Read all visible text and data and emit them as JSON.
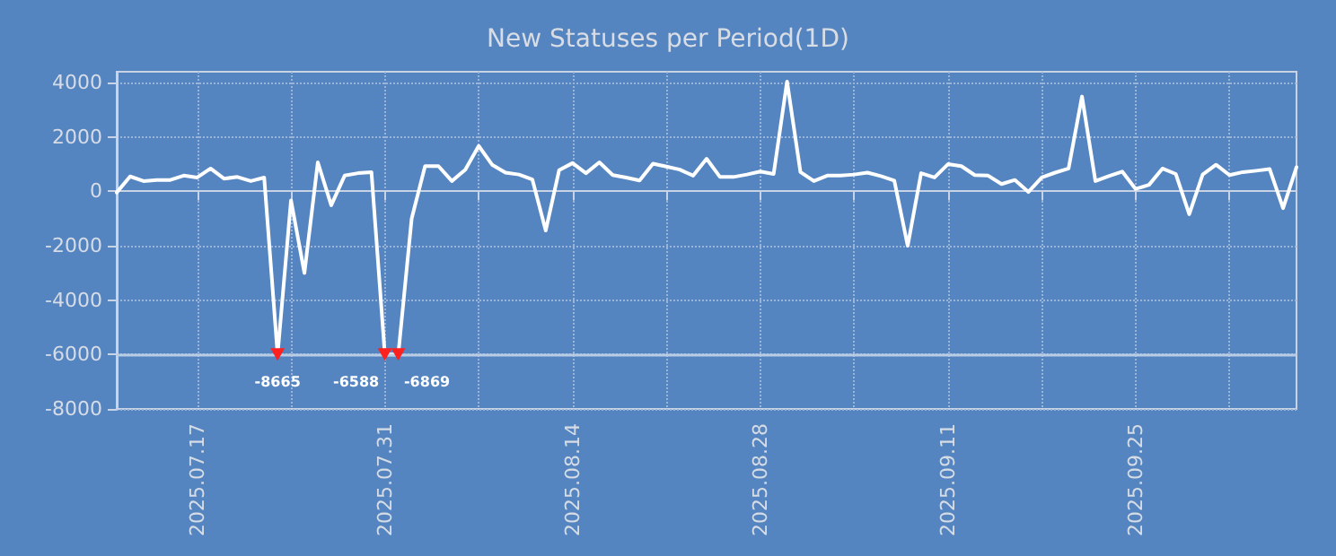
{
  "chart_data": {
    "type": "line",
    "title": "New Statuses per Period(1D)",
    "x": [
      "2025-07-11",
      "2025-07-12",
      "2025-07-13",
      "2025-07-14",
      "2025-07-15",
      "2025-07-16",
      "2025-07-17",
      "2025-07-18",
      "2025-07-19",
      "2025-07-20",
      "2025-07-21",
      "2025-07-22",
      "2025-07-23",
      "2025-07-24",
      "2025-07-25",
      "2025-07-26",
      "2025-07-27",
      "2025-07-28",
      "2025-07-29",
      "2025-07-30",
      "2025-07-31",
      "2025-08-01",
      "2025-08-02",
      "2025-08-03",
      "2025-08-04",
      "2025-08-05",
      "2025-08-06",
      "2025-08-07",
      "2025-08-08",
      "2025-08-09",
      "2025-08-10",
      "2025-08-11",
      "2025-08-12",
      "2025-08-13",
      "2025-08-14",
      "2025-08-15",
      "2025-08-16",
      "2025-08-17",
      "2025-08-18",
      "2025-08-19",
      "2025-08-20",
      "2025-08-21",
      "2025-08-22",
      "2025-08-23",
      "2025-08-24",
      "2025-08-25",
      "2025-08-26",
      "2025-08-27",
      "2025-08-28",
      "2025-08-29",
      "2025-08-30",
      "2025-08-31",
      "2025-09-01",
      "2025-09-02",
      "2025-09-03",
      "2025-09-04",
      "2025-09-05",
      "2025-09-06",
      "2025-09-07",
      "2025-09-08",
      "2025-09-09",
      "2025-09-10",
      "2025-09-11",
      "2025-09-12",
      "2025-09-13",
      "2025-09-14",
      "2025-09-15",
      "2025-09-16",
      "2025-09-17",
      "2025-09-18",
      "2025-09-19",
      "2025-09-20",
      "2025-09-21",
      "2025-09-22",
      "2025-09-23",
      "2025-09-24",
      "2025-09-25",
      "2025-09-26",
      "2025-09-27",
      "2025-09-28",
      "2025-09-29",
      "2025-09-30",
      "2025-10-01",
      "2025-10-02",
      "2025-10-03",
      "2025-10-04",
      "2025-10-05",
      "2025-10-06",
      "2025-10-07"
    ],
    "series": [
      {
        "color": "#ffffff",
        "values": [
          -40,
          550,
          380,
          420,
          420,
          580,
          510,
          840,
          470,
          530,
          380,
          510,
          -6000,
          -330,
          -3000,
          1070,
          -510,
          580,
          670,
          710,
          -6000,
          -6000,
          -1000,
          930,
          930,
          380,
          800,
          1670,
          980,
          690,
          620,
          440,
          -1440,
          780,
          1040,
          670,
          1070,
          600,
          510,
          400,
          1020,
          910,
          800,
          580,
          1200,
          530,
          530,
          620,
          730,
          640,
          4040,
          710,
          380,
          580,
          580,
          620,
          690,
          560,
          400,
          -2000,
          670,
          510,
          1000,
          930,
          600,
          580,
          270,
          420,
          -20,
          510,
          690,
          840,
          3490,
          380,
          560,
          730,
          90,
          240,
          840,
          640,
          -840,
          620,
          980,
          600,
          710,
          760,
          820,
          -620,
          890
        ]
      }
    ],
    "xlim": [
      "2025-07-11",
      "2025-10-07"
    ],
    "xticks": [
      {
        "value": "2025-07-17",
        "label": "2025.07.17"
      },
      {
        "value": "2025-07-24",
        "label": null
      },
      {
        "value": "2025-07-31",
        "label": "2025.07.31"
      },
      {
        "value": "2025-08-07",
        "label": null
      },
      {
        "value": "2025-08-14",
        "label": "2025.08.14"
      },
      {
        "value": "2025-08-21",
        "label": null
      },
      {
        "value": "2025-08-28",
        "label": "2025.08.28"
      },
      {
        "value": "2025-09-04",
        "label": null
      },
      {
        "value": "2025-09-11",
        "label": "2025.09.11"
      },
      {
        "value": "2025-09-18",
        "label": null
      },
      {
        "value": "2025-09-25",
        "label": "2025.09.25"
      },
      {
        "value": "2025-10-02",
        "label": null
      }
    ],
    "ylim": [
      -8000,
      4400
    ],
    "yticks": [
      -8000,
      -6000,
      -4000,
      -2000,
      0,
      2000,
      4000
    ],
    "ref_lines": [
      {
        "axis": "y",
        "value": -6000,
        "color": "#b8cce4",
        "line_style": "solid"
      }
    ],
    "annotations": [
      {
        "text": "-8665",
        "x": "2025-07-23",
        "y": -6000
      },
      {
        "text": "-6588",
        "x": "2025-07-31",
        "y": -6000
      },
      {
        "text": "-6869",
        "x": "2025-08-01",
        "y": -6000
      }
    ],
    "grid": true,
    "marker": "none",
    "line_style": "solid"
  }
}
